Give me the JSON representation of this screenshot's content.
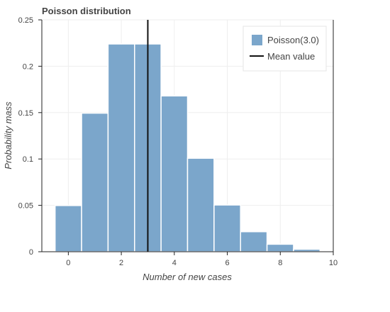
{
  "chart_data": {
    "type": "bar",
    "title": "Poisson distribution",
    "xlabel": "Number of new cases",
    "ylabel": "Probability mass",
    "x": [
      0,
      1,
      2,
      3,
      4,
      5,
      6,
      7,
      8,
      9
    ],
    "values": [
      0.0498,
      0.1494,
      0.224,
      0.224,
      0.168,
      0.1008,
      0.0504,
      0.0216,
      0.0081,
      0.0027
    ],
    "xlim": [
      -1,
      10
    ],
    "ylim": [
      0,
      0.25
    ],
    "xticks": [
      0,
      2,
      4,
      6,
      8,
      10
    ],
    "xtick_labels": [
      "0",
      "2",
      "4",
      "6",
      "8",
      "10"
    ],
    "yticks": [
      0,
      0.05,
      0.1,
      0.15,
      0.2,
      0.25
    ],
    "ytick_labels": [
      "0",
      "0.05",
      "0.1",
      "0.15",
      "0.2",
      "0.25"
    ],
    "mean": 3.0,
    "grid": true,
    "legend_position": "top-right",
    "legend": [
      {
        "label": "Poisson(3.0)",
        "kind": "bar"
      },
      {
        "label": "Mean value",
        "kind": "line"
      }
    ],
    "colors": {
      "bar": "#7ba6cb",
      "bar_edge": "#ffffff",
      "mean_line": "#111111",
      "grid": "#eeeeee",
      "axis": "#222222"
    }
  }
}
